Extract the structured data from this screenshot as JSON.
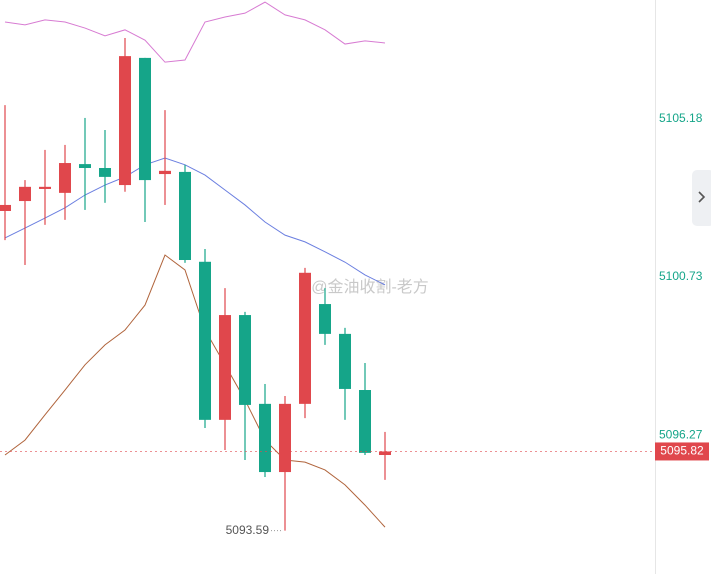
{
  "chart_data": {
    "type": "candlestick",
    "open": [
      5102.59,
      5102.87,
      5103.21,
      5103.1,
      5103.91,
      5103.8,
      5103.32,
      5106.9,
      5103.63,
      5103.69,
      5101.16,
      5096.71,
      5099.66,
      5097.16,
      5095.24,
      5097.16,
      5099.97,
      5099.13,
      5097.55,
      5095.72
    ],
    "high": [
      5105.57,
      5103.46,
      5104.31,
      5104.45,
      5105.21,
      5104.87,
      5107.46,
      5106.9,
      5105.43,
      5103.89,
      5101.52,
      5100.42,
      5099.75,
      5097.72,
      5097.38,
      5100.99,
      5100.42,
      5099.3,
      5098.31,
      5096.37
    ],
    "low": [
      5101.77,
      5101.07,
      5102.2,
      5102.34,
      5102.62,
      5102.82,
      5103.13,
      5102.28,
      5102.76,
      5101.13,
      5096.48,
      5095.86,
      5095.58,
      5095.1,
      5093.59,
      5096.76,
      5098.82,
      5096.71,
      5095.72,
      5095.02
    ],
    "close": [
      5102.76,
      5103.27,
      5103.27,
      5103.94,
      5103.8,
      5103.55,
      5106.95,
      5103.46,
      5103.72,
      5101.21,
      5096.71,
      5099.66,
      5097.13,
      5095.24,
      5097.16,
      5100.85,
      5099.13,
      5097.58,
      5095.78,
      5095.82
    ],
    "up_color": "#e0474c",
    "down_color": "#15a589",
    "lines": [
      {
        "color": "#d77bd2",
        "values": [
          5107.91,
          5107.83,
          5107.97,
          5107.91,
          5107.74,
          5107.52,
          5107.69,
          5107.4,
          5106.78,
          5106.84,
          5107.91,
          5108.05,
          5108.16,
          5108.47,
          5108.11,
          5107.97,
          5107.69,
          5107.29,
          5107.38,
          5107.32
        ]
      },
      {
        "color": "#6b7fe0",
        "values": [
          5101.83,
          5102.11,
          5102.39,
          5102.68,
          5103.04,
          5103.32,
          5103.55,
          5103.89,
          5104.08,
          5103.89,
          5103.6,
          5103.18,
          5102.76,
          5102.28,
          5101.91,
          5101.72,
          5101.44,
          5101.15,
          5100.79,
          5100.51
        ]
      },
      {
        "color": "#b0643c",
        "values": [
          5095.72,
          5096.14,
          5096.85,
          5097.55,
          5098.26,
          5098.82,
          5099.24,
          5099.94,
          5101.35,
          5100.93,
          5099.24,
          5098.26,
          5097.27,
          5096.14,
          5095.58,
          5095.52,
          5095.3,
          5094.88,
          5094.31,
          5093.69
        ]
      }
    ],
    "ylim": [
      5092.37,
      5108.53
    ],
    "yticks": [
      5096.27,
      5100.73,
      5105.18
    ],
    "watermark": "@金油收割-老方"
  }
}
